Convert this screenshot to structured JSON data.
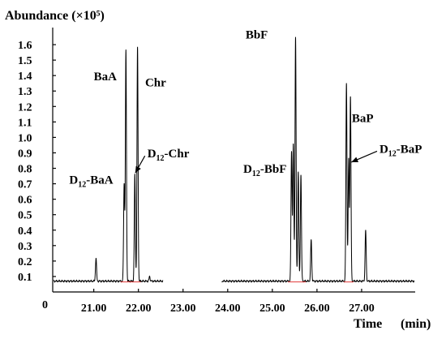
{
  "chart_data": {
    "type": "line",
    "title": "Abundance (×10⁵)",
    "ylabel": "Abundance (×10⁵)",
    "xlabel": "Time",
    "xunit": "(min)",
    "origin_label": "0",
    "x_ticks": [
      "21.00",
      "22.00",
      "23.00",
      "24.00",
      "25.00",
      "26.00",
      "27.00"
    ],
    "x_tick_values": [
      21,
      22,
      23,
      24,
      25,
      26,
      27
    ],
    "y_ticks": [
      "0.1",
      "0.2",
      "0.3",
      "0.4",
      "0.5",
      "0.6",
      "0.7",
      "0.8",
      "0.9",
      "1.0",
      "1.1",
      "1.2",
      "1.3",
      "1.4",
      "1.5",
      "1.6"
    ],
    "y_tick_values": [
      0.1,
      0.2,
      0.3,
      0.4,
      0.5,
      0.6,
      0.7,
      0.8,
      0.9,
      1.0,
      1.1,
      1.2,
      1.3,
      1.4,
      1.5,
      1.6
    ],
    "xlim": [
      20.08,
      28.2
    ],
    "ylim": [
      0.0,
      1.7
    ],
    "baseline": 0.07,
    "gap": [
      22.55,
      23.87
    ],
    "peaks": [
      {
        "x": 21.05,
        "y": 0.22
      },
      {
        "x": 21.68,
        "y": 0.7
      },
      {
        "x": 21.72,
        "y": 1.56
      },
      {
        "x": 21.92,
        "y": 0.76
      },
      {
        "x": 21.98,
        "y": 1.58
      },
      {
        "x": 22.25,
        "y": 0.1
      },
      {
        "x": 25.43,
        "y": 0.91
      },
      {
        "x": 25.47,
        "y": 0.95
      },
      {
        "x": 25.52,
        "y": 1.65
      },
      {
        "x": 25.58,
        "y": 0.78
      },
      {
        "x": 25.64,
        "y": 0.76
      },
      {
        "x": 25.87,
        "y": 0.34
      },
      {
        "x": 26.66,
        "y": 1.35
      },
      {
        "x": 26.71,
        "y": 0.86
      },
      {
        "x": 26.75,
        "y": 1.26
      },
      {
        "x": 27.09,
        "y": 0.4
      }
    ],
    "annotations": [
      {
        "text": "BaA",
        "x": 21.0,
        "y": 1.37
      },
      {
        "text": "Chr",
        "x": 22.15,
        "y": 1.33
      },
      {
        "text": "BbF",
        "x": 24.4,
        "y": 1.64
      },
      {
        "text": "BaP",
        "x": 26.78,
        "y": 1.1
      },
      {
        "text": "D",
        "sub": "12",
        "suffix": "-Chr",
        "x": 22.2,
        "y": 0.87,
        "arrow_to": [
          21.93,
          0.77
        ]
      },
      {
        "text": "D",
        "sub": "12",
        "suffix": "-BaA",
        "x": 20.45,
        "y": 0.7
      },
      {
        "text": "D",
        "sub": "12",
        "suffix": "-BbF",
        "x": 24.35,
        "y": 0.77
      },
      {
        "text": "D",
        "sub": "12",
        "suffix": "-BaP",
        "x": 27.4,
        "y": 0.9,
        "arrow_to": [
          26.77,
          0.84
        ]
      }
    ]
  }
}
